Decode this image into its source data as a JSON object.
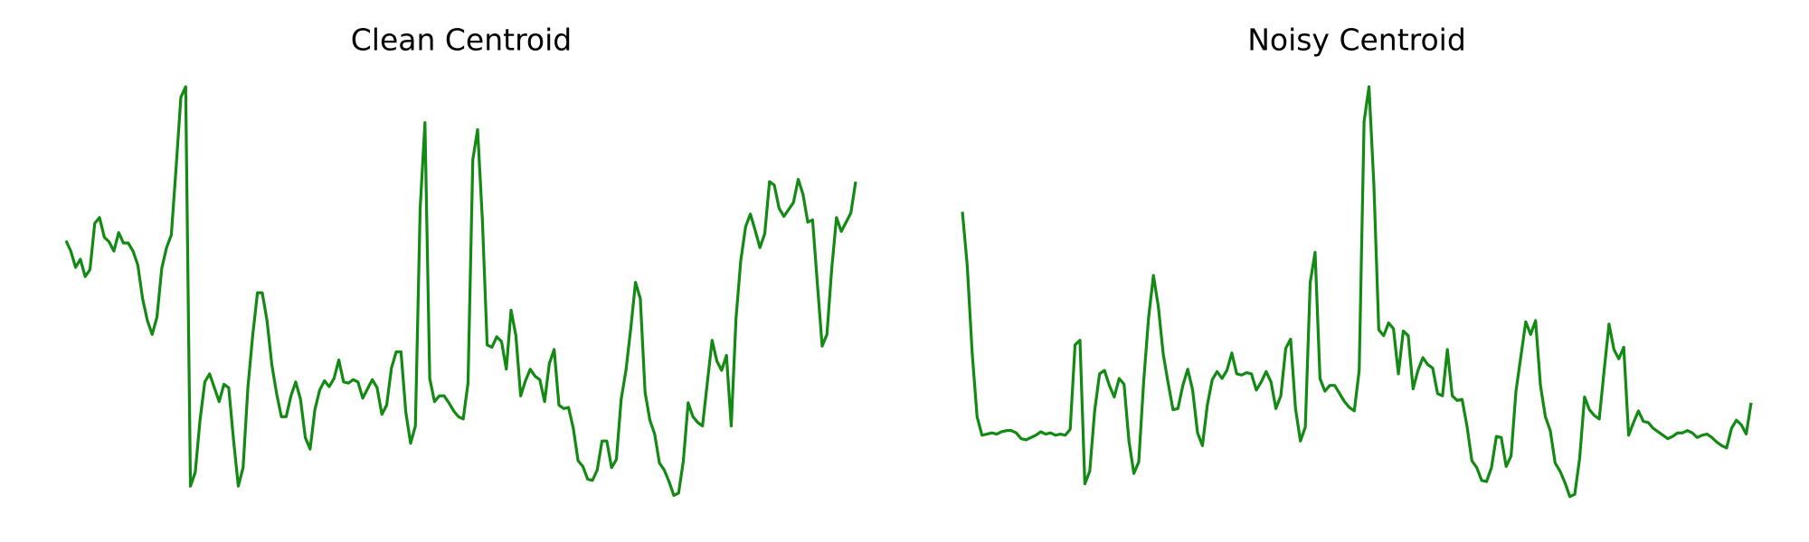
{
  "chart_data": [
    {
      "type": "line",
      "title": "Clean Centroid",
      "color": "#138a13",
      "ylim": [
        0,
        355
      ],
      "values": [
        222,
        213,
        199,
        206,
        191,
        197,
        237,
        242,
        225,
        221,
        213,
        229,
        220,
        220,
        213,
        201,
        172,
        153,
        141,
        156,
        198,
        216,
        227,
        285,
        346,
        355,
        10,
        22,
        67,
        100,
        107,
        95,
        83,
        98,
        95,
        50,
        10,
        26,
        95,
        140,
        177,
        177,
        153,
        115,
        90,
        70,
        70,
        88,
        100,
        85,
        52,
        42,
        76,
        93,
        101,
        96,
        103,
        119,
        100,
        99,
        102,
        100,
        86,
        94,
        102,
        95,
        72,
        80,
        112,
        126,
        126,
        74,
        47,
        62,
        250,
        324,
        103,
        83,
        88,
        88,
        82,
        75,
        70,
        68,
        99,
        292,
        318,
        240,
        132,
        130,
        139,
        135,
        111,
        162,
        140,
        88,
        101,
        111,
        105,
        102,
        83,
        116,
        128,
        80,
        77,
        78,
        60,
        32,
        27,
        16,
        15,
        24,
        49,
        49,
        26,
        33,
        85,
        110,
        146,
        186,
        172,
        91,
        67,
        55,
        30,
        24,
        14,
        2,
        4,
        32,
        82,
        70,
        65,
        62,
        99,
        136,
        118,
        110,
        123,
        62,
        155,
        205,
        234,
        245,
        231,
        216,
        228,
        273,
        270,
        250,
        243,
        249,
        255,
        275,
        262,
        238,
        240,
        185,
        131,
        141,
        198,
        242,
        230,
        238,
        246,
        273
      ]
    },
    {
      "type": "line",
      "title": "Noisy Centroid",
      "color": "#138a13",
      "ylim": [
        0,
        355
      ],
      "values": [
        247,
        200,
        125,
        70,
        54,
        55,
        56,
        55,
        57,
        58,
        58,
        56,
        51,
        50,
        52,
        54,
        57,
        55,
        56,
        54,
        55,
        54,
        59,
        132,
        136,
        12,
        23,
        75,
        107,
        110,
        97,
        87,
        103,
        98,
        49,
        21,
        31,
        100,
        155,
        192,
        165,
        124,
        99,
        76,
        77,
        97,
        111,
        93,
        56,
        45,
        80,
        102,
        109,
        103,
        110,
        125,
        107,
        106,
        108,
        107,
        93,
        100,
        109,
        100,
        77,
        88,
        129,
        137,
        77,
        49,
        61,
        186,
        212,
        103,
        92,
        97,
        97,
        90,
        83,
        78,
        75,
        110,
        325,
        355,
        270,
        145,
        140,
        151,
        146,
        107,
        144,
        140,
        94,
        110,
        121,
        115,
        112,
        90,
        88,
        128,
        88,
        84,
        85,
        62,
        32,
        26,
        15,
        14,
        26,
        53,
        52,
        27,
        36,
        92,
        122,
        152,
        141,
        153,
        97,
        70,
        58,
        30,
        23,
        13,
        1,
        3,
        34,
        87,
        76,
        71,
        68,
        110,
        150,
        128,
        120,
        130,
        54,
        65,
        75,
        66,
        65,
        60,
        57,
        54,
        51,
        53,
        56,
        56,
        58,
        56,
        52,
        54,
        55,
        52,
        48,
        45,
        43,
        60,
        67,
        63,
        55,
        82
      ]
    }
  ]
}
